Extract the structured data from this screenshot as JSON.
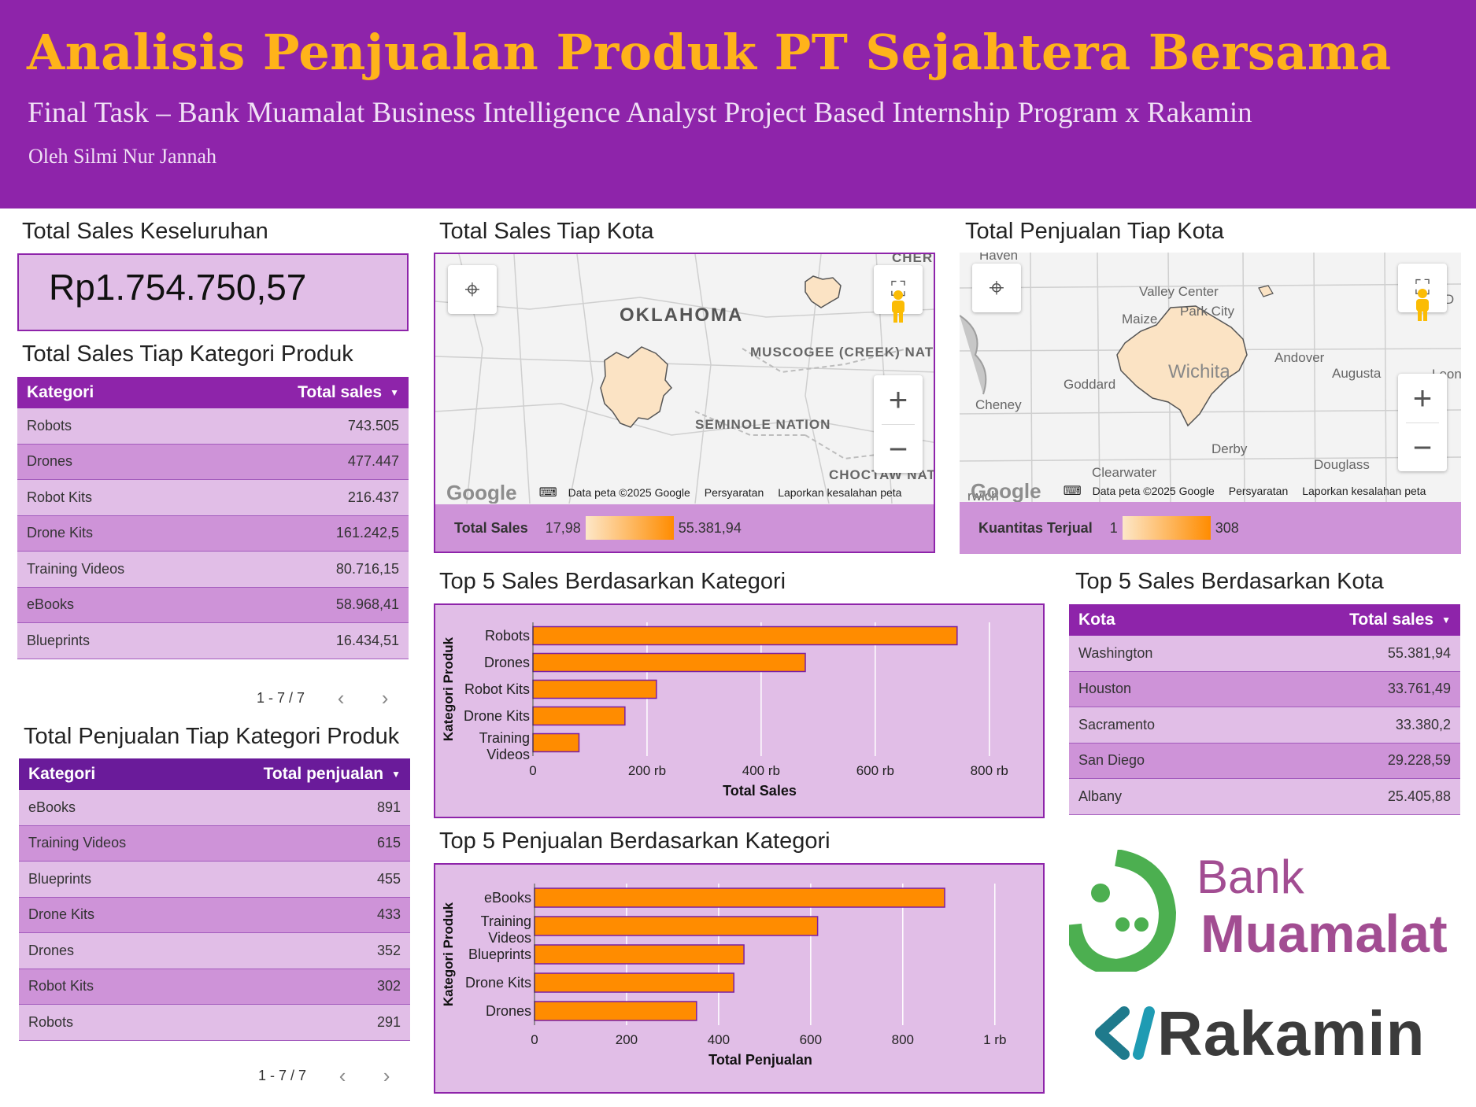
{
  "header": {
    "title": "Analisis Penjualan Produk PT Sejahtera Bersama",
    "subtitle": "Final Task – Bank Muamalat Business Intelligence Analyst Project Based Internship Program x Rakamin",
    "author": "Oleh Silmi Nur Jannah"
  },
  "kpi": {
    "title": "Total Sales Keseluruhan",
    "value": "Rp1.754.750,57"
  },
  "sales_by_category": {
    "title": "Total Sales Tiap Kategori Produk",
    "col1": "Kategori",
    "col2": "Total sales",
    "rows": [
      {
        "name": "Robots",
        "value": "743.505"
      },
      {
        "name": "Drones",
        "value": "477.447"
      },
      {
        "name": "Robot Kits",
        "value": "216.437"
      },
      {
        "name": "Drone Kits",
        "value": "161.242,5"
      },
      {
        "name": "Training Videos",
        "value": "80.716,15"
      },
      {
        "name": "eBooks",
        "value": "58.968,41"
      },
      {
        "name": "Blueprints",
        "value": "16.434,51"
      }
    ],
    "pager": "1 - 7 / 7"
  },
  "qty_by_category": {
    "title": "Total Penjualan Tiap Kategori Produk",
    "col1": "Kategori",
    "col2": "Total penjualan",
    "rows": [
      {
        "name": "eBooks",
        "value": "891"
      },
      {
        "name": "Training Videos",
        "value": "615"
      },
      {
        "name": "Blueprints",
        "value": "455"
      },
      {
        "name": "Drone Kits",
        "value": "433"
      },
      {
        "name": "Drones",
        "value": "352"
      },
      {
        "name": "Robot Kits",
        "value": "302"
      },
      {
        "name": "Robots",
        "value": "291"
      }
    ],
    "pager": "1 - 7 / 7"
  },
  "map_sales": {
    "title": "Total Sales Tiap Kota",
    "legend_label": "Total Sales",
    "legend_min": "17,98",
    "legend_max": "55.381,94",
    "labels": {
      "state": "OKLAHOMA",
      "nation1": "MUSCOGEE (CREEK) NATION",
      "nation2": "SEMINOLE NATION",
      "nation3": "CHOCTAW NATION",
      "nation4": "CHER NAT"
    },
    "footer_data": "Data peta ©2025 Google",
    "footer_terms": "Persyaratan",
    "footer_report": "Laporkan kesalahan peta",
    "google": "Google"
  },
  "map_qty": {
    "title": "Total Penjualan Tiap Kota",
    "legend_label": "Kuantitas Terjual",
    "legend_min": "1",
    "legend_max": "308",
    "labels": {
      "haven": "Haven",
      "valley": "Valley Center",
      "park": "Park City",
      "maize": "Maize",
      "wichita": "Wichita",
      "andover": "Andover",
      "augusta": "Augusta",
      "goddard": "Goddard",
      "cheney": "Cheney",
      "derby": "Derby",
      "clearwater": "Clearwater",
      "douglass": "Douglass",
      "eld": "El D",
      "leon": "Leon",
      "wich": "rwich"
    },
    "footer_data": "Data peta ©2025 Google",
    "footer_terms": "Persyaratan",
    "footer_report": "Laporkan kesalahan peta",
    "google": "Google"
  },
  "top5_city": {
    "title": "Top 5 Sales Berdasarkan Kota",
    "col1": "Kota",
    "col2": "Total sales",
    "rows": [
      {
        "name": "Washington",
        "value": "55.381,94"
      },
      {
        "name": "Houston",
        "value": "33.761,49"
      },
      {
        "name": "Sacramento",
        "value": "33.380,2"
      },
      {
        "name": "San Diego",
        "value": "29.228,59"
      },
      {
        "name": "Albany",
        "value": "25.405,88"
      }
    ]
  },
  "chart_data": [
    {
      "type": "bar",
      "orientation": "horizontal",
      "title": "Top 5 Sales Berdasarkan Kategori",
      "xlabel": "Total Sales",
      "ylabel": "Kategori Produk",
      "categories": [
        "Robots",
        "Drones",
        "Robot Kits",
        "Drone Kits",
        "Training Videos"
      ],
      "values": [
        743505,
        477447,
        216437,
        161242.5,
        80716.15
      ],
      "xlim": [
        0,
        850000
      ],
      "ticks": [
        0,
        200000,
        400000,
        600000,
        800000
      ],
      "tick_labels": [
        "0",
        "200 rb",
        "400 rb",
        "600 rb",
        "800 rb"
      ],
      "grid": true,
      "bar_color": "#ff8c00"
    },
    {
      "type": "bar",
      "orientation": "horizontal",
      "title": "Top 5 Penjualan Berdasarkan Kategori",
      "xlabel": "Total Penjualan",
      "ylabel": "Kategori Produk",
      "categories": [
        "eBooks",
        "Training Videos",
        "Blueprints",
        "Drone Kits",
        "Drones"
      ],
      "values": [
        891,
        615,
        455,
        433,
        352
      ],
      "xlim": [
        0,
        1050
      ],
      "ticks": [
        0,
        200,
        400,
        600,
        800,
        1000
      ],
      "tick_labels": [
        "0",
        "200",
        "400",
        "600",
        "800",
        "1 rb"
      ],
      "grid": true,
      "bar_color": "#ff8c00"
    }
  ],
  "logos": {
    "bank_line1": "Bank",
    "bank_line2": "Muamalat",
    "rakamin": "Rakamin"
  },
  "icons": {
    "locate": "locate-icon",
    "fullscreen": "fullscreen-icon",
    "pegman": "pegman-icon",
    "zoom_in": "plus-icon",
    "zoom_out": "minus-icon"
  },
  "colors": {
    "header_bg": "#8e24aa",
    "title": "#ffb31a",
    "panel": "#e1bee7",
    "panel_dark": "#ce93d8",
    "table_head": "#8e24aa",
    "table_head_dark": "#6a1b9a",
    "bar": "#ff8c00"
  }
}
